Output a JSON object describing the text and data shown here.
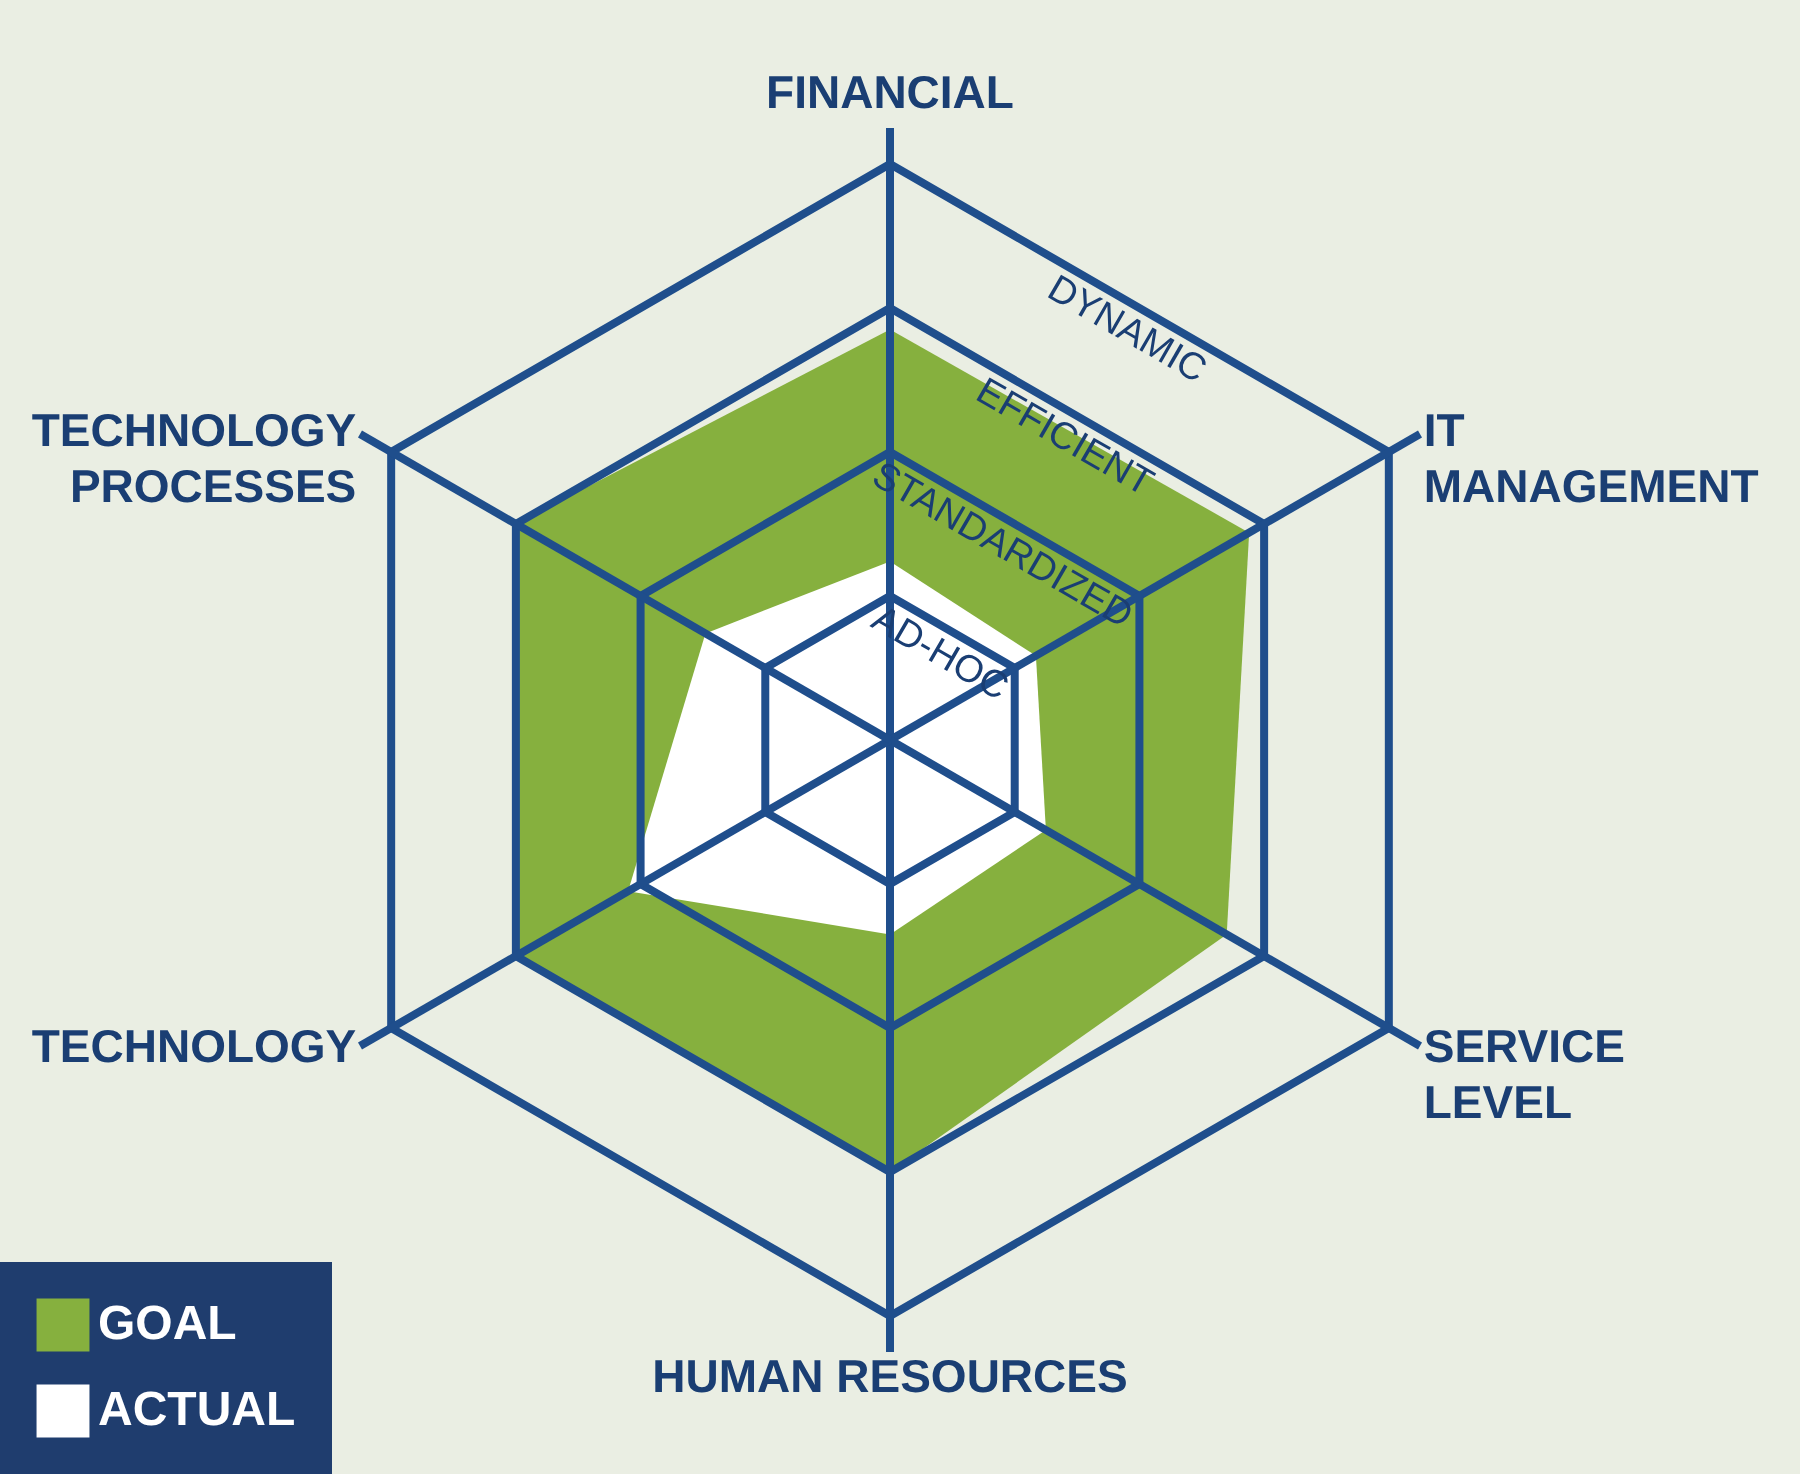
{
  "chart_data": {
    "type": "radar",
    "categories": [
      "FINANCIAL",
      "IT\nMANAGEMENT",
      "SERVICE\nLEVEL",
      "HUMAN RESOURCES",
      "TECHNOLOGY",
      "TECHNOLOGY\nPROCESSES"
    ],
    "series": [
      {
        "name": "GOAL",
        "color": "#86b03e",
        "values": [
          2.85,
          2.88,
          2.7,
          3.0,
          3.0,
          3.0
        ]
      },
      {
        "name": "ACTUAL",
        "color": "#ffffff",
        "values": [
          1.24,
          1.17,
          1.25,
          1.35,
          2.1,
          1.48
        ]
      }
    ],
    "ylim": [
      0,
      4
    ],
    "yticks": [
      {
        "value": 1,
        "label": "AD-HOC"
      },
      {
        "value": 2,
        "label": "STANDARDIZED"
      },
      {
        "value": 3,
        "label": "EFFICIENT"
      },
      {
        "value": 4,
        "label": "DYNAMIC"
      }
    ],
    "grid": true,
    "legend": "bottom left"
  }
}
